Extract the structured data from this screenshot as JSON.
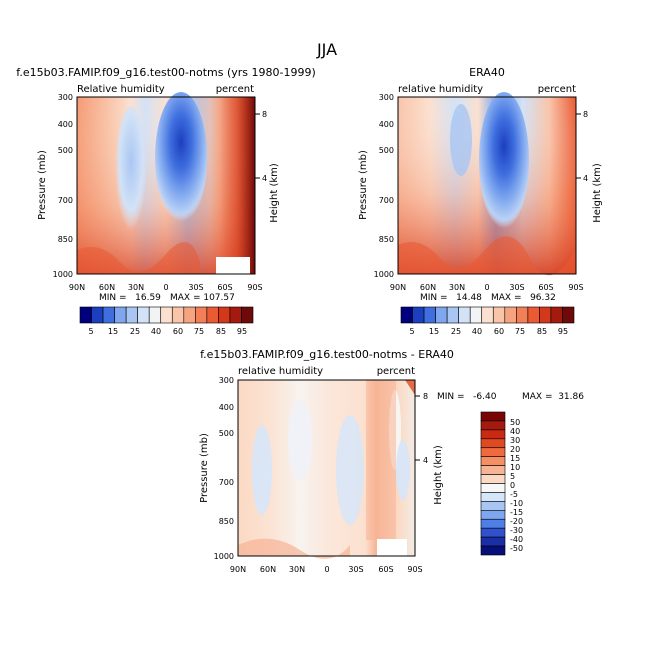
{
  "figure": {
    "title": "JJA"
  },
  "chart_data": [
    {
      "type": "heatmap",
      "title": "f.e15b03.FAMIP.f09_g16.test00-notms (yrs 1980-1999)",
      "left_label": "Relative humidity",
      "right_label": "percent",
      "ylabel": "Pressure (mb)",
      "y2label": "Height (km)",
      "x_ticks": [
        "90N",
        "60N",
        "30N",
        "0",
        "30S",
        "60S",
        "90S"
      ],
      "y_ticks": [
        "300",
        "400",
        "500",
        "700",
        "850",
        "1000"
      ],
      "y2_ticks": [
        "8",
        "4"
      ],
      "min_text": "MIN =   16.59",
      "max_text": "MAX = 107.57",
      "color_levels": [
        "5",
        "15",
        "25",
        "40",
        "60",
        "75",
        "85",
        "95"
      ],
      "grid": false
    },
    {
      "type": "heatmap",
      "title": "ERA40",
      "left_label": "relative humidity",
      "right_label": "percent",
      "ylabel": "Pressure (mb)",
      "y2label": "Height (km)",
      "x_ticks": [
        "90N",
        "60N",
        "30N",
        "0",
        "30S",
        "60S",
        "90S"
      ],
      "y_ticks": [
        "300",
        "400",
        "500",
        "700",
        "850",
        "1000"
      ],
      "y2_ticks": [
        "8",
        "4"
      ],
      "min_text": "MIN =   14.48",
      "max_text": "MAX =   96.32",
      "color_levels": [
        "5",
        "15",
        "25",
        "40",
        "60",
        "75",
        "85",
        "95"
      ],
      "grid": false
    },
    {
      "type": "heatmap",
      "title": "f.e15b03.FAMIP.f09_g16.test00-notms - ERA40",
      "left_label": "relative humidity",
      "right_label": "percent",
      "ylabel": "Pressure (mb)",
      "y2label": "Height (km)",
      "x_ticks": [
        "90N",
        "60N",
        "30N",
        "0",
        "30S",
        "60S",
        "90S"
      ],
      "y_ticks": [
        "300",
        "400",
        "500",
        "700",
        "850",
        "1000"
      ],
      "y2_ticks": [
        "8",
        "4"
      ],
      "min_text": "MIN =   -6.40",
      "max_text": "MAX =  31.86",
      "color_levels": [
        "50",
        "40",
        "30",
        "20",
        "15",
        "10",
        "5",
        "0",
        "-5",
        "-10",
        "-15",
        "-20",
        "-30",
        "-40",
        "-50"
      ],
      "grid": false
    }
  ],
  "colorbars": {
    "abs_colors": [
      "#00007f",
      "#1c3fbf",
      "#3f6fdf",
      "#7fa7ef",
      "#a9c6f3",
      "#d2e2f7",
      "#f2f3f5",
      "#fbe0cf",
      "#f9c4a8",
      "#f6a37f",
      "#f27f57",
      "#ea5a33",
      "#d4381b",
      "#a51a0f",
      "#6e0a0a"
    ],
    "diff_colors": [
      "#7a0505",
      "#a51a0f",
      "#c82a14",
      "#e04a22",
      "#ef6a3c",
      "#f38f63",
      "#f7b495",
      "#fbd9c3",
      "#f7f7f7",
      "#d6e6f9",
      "#a9c6f3",
      "#7fa7ef",
      "#4f7fe6",
      "#2f52cc",
      "#1a2fa6",
      "#07107a"
    ]
  }
}
